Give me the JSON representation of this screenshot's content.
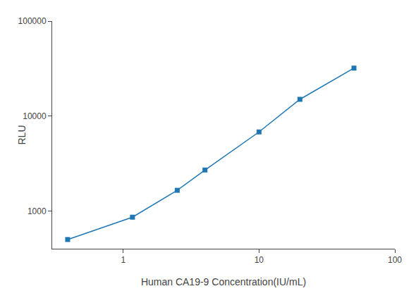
{
  "chart_data": {
    "type": "line",
    "x": [
      0.39,
      1.17,
      2.5,
      4.0,
      10.0,
      20.0,
      50.0
    ],
    "values": [
      500,
      860,
      1650,
      2700,
      6800,
      15000,
      32000
    ],
    "xlabel": "Human CA19-9 Concentration(IU/mL)",
    "ylabel": "RLU",
    "xlim": [
      0.3,
      100
    ],
    "ylim": [
      400,
      100000
    ],
    "xticks": [
      1,
      10,
      100
    ],
    "yticks": [
      1000,
      10000,
      100000
    ],
    "log": true,
    "grid": false,
    "marker": "square",
    "line_style": "solid"
  }
}
